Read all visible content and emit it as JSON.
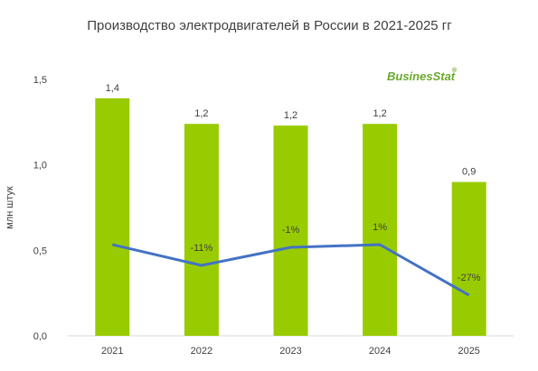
{
  "chart_data": {
    "type": "bar",
    "title": "Производство электродвигателей в России в 2021-2025 гг",
    "xlabel": "",
    "ylabel": "млн штук",
    "ylim": [
      0,
      1.5
    ],
    "yticks": [
      "0,0",
      "0,5",
      "1,0",
      "1,5"
    ],
    "categories": [
      "2021",
      "2022",
      "2023",
      "2024",
      "2025"
    ],
    "values": [
      1.39,
      1.24,
      1.23,
      1.24,
      0.9
    ],
    "value_labels": [
      "1,4",
      "1,2",
      "1,2",
      "1,2",
      "0,9"
    ],
    "growth_line": {
      "values": [
        null,
        -11,
        -1,
        1,
        -27
      ],
      "labels": [
        "",
        "-11%",
        "-1%",
        "1%",
        "-27%"
      ]
    },
    "grid": false,
    "colors": {
      "bars": "#99cc00",
      "line": "#4472c4",
      "text": "#404040"
    }
  },
  "watermark": "BusinesStat"
}
